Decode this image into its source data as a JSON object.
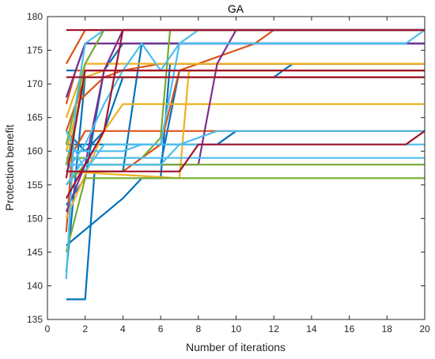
{
  "chart_data": {
    "type": "line",
    "title": "GA",
    "xlabel": "Number of iterations",
    "ylabel": "Protection benefit",
    "xlim": [
      0,
      20
    ],
    "ylim": [
      135,
      180
    ],
    "xticks": [
      0,
      2,
      4,
      6,
      8,
      10,
      12,
      14,
      16,
      18,
      20
    ],
    "yticks": [
      135,
      140,
      145,
      150,
      155,
      160,
      165,
      170,
      175,
      180
    ],
    "grid": false,
    "series": [
      {
        "color": "#0072BD",
        "x": [
          1,
          2,
          2.5,
          3,
          4,
          5,
          20
        ],
        "y": [
          138,
          138,
          157,
          157,
          157,
          176,
          176
        ]
      },
      {
        "color": "#0072BD",
        "x": [
          1,
          2,
          3,
          4,
          20
        ],
        "y": [
          142,
          171,
          171,
          171,
          171
        ]
      },
      {
        "color": "#0072BD",
        "x": [
          1,
          4,
          5,
          6,
          6.5,
          20
        ],
        "y": [
          146,
          153,
          156,
          156,
          173,
          173
        ]
      },
      {
        "color": "#0072BD",
        "x": [
          1,
          1.5,
          2,
          20
        ],
        "y": [
          172,
          172,
          176,
          176
        ]
      },
      {
        "color": "#0072BD",
        "x": [
          1,
          2,
          3,
          4,
          12,
          13,
          20
        ],
        "y": [
          163,
          160,
          163,
          171,
          171,
          173,
          173
        ]
      },
      {
        "color": "#0072BD",
        "x": [
          1,
          6,
          7,
          20
        ],
        "y": [
          158,
          158,
          172,
          172
        ]
      },
      {
        "color": "#0072BD",
        "x": [
          1,
          9,
          10,
          11,
          20
        ],
        "y": [
          161,
          161,
          163,
          163,
          163
        ]
      },
      {
        "color": "#0072BD",
        "x": [
          1,
          2,
          3,
          4,
          20
        ],
        "y": [
          152,
          156,
          172,
          176,
          176
        ]
      },
      {
        "color": "#D95319",
        "x": [
          1,
          2,
          20
        ],
        "y": [
          158,
          163,
          163
        ]
      },
      {
        "color": "#D95319",
        "x": [
          1,
          1.5,
          3,
          4,
          6,
          8,
          20
        ],
        "y": [
          148,
          167,
          171,
          172,
          173,
          173,
          173
        ]
      },
      {
        "color": "#D95319",
        "x": [
          1,
          2,
          20
        ],
        "y": [
          173,
          178,
          178
        ]
      },
      {
        "color": "#D95319",
        "x": [
          1,
          2,
          20
        ],
        "y": [
          163,
          171,
          171
        ]
      },
      {
        "color": "#D95319",
        "x": [
          1,
          1.5,
          20
        ],
        "y": [
          167,
          172,
          172
        ]
      },
      {
        "color": "#D95319",
        "x": [
          1,
          4,
          6,
          7,
          11,
          12,
          20
        ],
        "y": [
          157,
          157,
          161,
          172,
          176,
          178,
          178
        ]
      },
      {
        "color": "#EDB120",
        "x": [
          1,
          3,
          4,
          20
        ],
        "y": [
          150,
          163,
          167,
          167
        ]
      },
      {
        "color": "#EDB120",
        "x": [
          1,
          2,
          3,
          5,
          20
        ],
        "y": [
          165,
          173,
          173,
          173,
          173
        ]
      },
      {
        "color": "#EDB120",
        "x": [
          1,
          7,
          7.5,
          20
        ],
        "y": [
          157,
          156,
          172,
          172
        ]
      },
      {
        "color": "#EDB120",
        "x": [
          1,
          2,
          3,
          20
        ],
        "y": [
          160,
          171,
          172,
          172
        ]
      },
      {
        "color": "#7E2F8E",
        "x": [
          1,
          2,
          3,
          4,
          20
        ],
        "y": [
          151,
          158,
          172,
          178,
          178
        ]
      },
      {
        "color": "#7E2F8E",
        "x": [
          1,
          8,
          9,
          10,
          20
        ],
        "y": [
          158,
          158,
          173,
          178,
          178
        ]
      },
      {
        "color": "#7E2F8E",
        "x": [
          1,
          2,
          3,
          20
        ],
        "y": [
          168,
          176,
          176,
          176
        ]
      },
      {
        "color": "#77AC30",
        "x": [
          1,
          2,
          20
        ],
        "y": [
          145,
          156,
          156
        ]
      },
      {
        "color": "#77AC30",
        "x": [
          1,
          2,
          3,
          20
        ],
        "y": [
          161,
          173,
          178,
          178
        ]
      },
      {
        "color": "#77AC30",
        "x": [
          1,
          2,
          20
        ],
        "y": [
          155,
          158,
          158
        ]
      },
      {
        "color": "#77AC30",
        "x": [
          1,
          5,
          6,
          6.5,
          20
        ],
        "y": [
          159,
          159,
          162,
          178,
          178
        ]
      },
      {
        "color": "#77AC30",
        "x": [
          1,
          2,
          3,
          20
        ],
        "y": [
          158,
          171,
          171,
          171
        ]
      },
      {
        "color": "#4DBEEE",
        "x": [
          1,
          1.5,
          2,
          3,
          20
        ],
        "y": [
          141,
          167,
          176,
          178,
          178
        ]
      },
      {
        "color": "#4DBEEE",
        "x": [
          1,
          2,
          3,
          4,
          20
        ],
        "y": [
          163,
          157,
          161,
          161,
          161
        ]
      },
      {
        "color": "#4DBEEE",
        "x": [
          1,
          2,
          3,
          4,
          5,
          6,
          7,
          8,
          20
        ],
        "y": [
          157,
          161,
          167,
          172,
          176,
          172,
          176,
          178,
          178
        ]
      },
      {
        "color": "#4DBEEE",
        "x": [
          1,
          4,
          5,
          6,
          7,
          19,
          20
        ],
        "y": [
          160,
          160,
          161,
          161,
          176,
          176,
          178
        ]
      },
      {
        "color": "#4DBEEE",
        "x": [
          1,
          2,
          3,
          4,
          20
        ],
        "y": [
          155,
          159,
          159,
          159,
          159
        ]
      },
      {
        "color": "#4DBEEE",
        "x": [
          1,
          6,
          7,
          9,
          20
        ],
        "y": [
          158,
          158,
          161,
          163,
          163
        ]
      },
      {
        "color": "#A2142F",
        "x": [
          1,
          3,
          4,
          20
        ],
        "y": [
          153,
          163,
          178,
          178
        ]
      },
      {
        "color": "#A2142F",
        "x": [
          1,
          2,
          20
        ],
        "y": [
          156,
          172,
          172
        ]
      },
      {
        "color": "#A2142F",
        "x": [
          1,
          1.5,
          20
        ],
        "y": [
          178,
          178,
          178
        ]
      },
      {
        "color": "#A2142F",
        "x": [
          1,
          7,
          8,
          19,
          20
        ],
        "y": [
          157,
          157,
          161,
          161,
          163
        ]
      },
      {
        "color": "#A2142F",
        "x": [
          1,
          1.5,
          20
        ],
        "y": [
          171,
          171,
          171
        ]
      }
    ]
  }
}
